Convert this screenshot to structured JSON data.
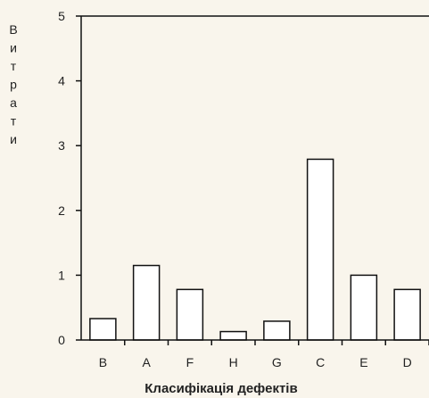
{
  "chart_data": {
    "type": "bar",
    "categories": [
      "B",
      "A",
      "F",
      "H",
      "G",
      "C",
      "E",
      "D"
    ],
    "values": [
      0.33,
      1.15,
      0.78,
      0.13,
      0.29,
      2.79,
      1.0,
      0.78
    ],
    "xlabel": "Класифікація дефектів",
    "ylabel": "Витрати",
    "ylim": [
      0,
      5
    ],
    "yticks": [
      "0",
      "1",
      "2",
      "3",
      "4",
      "5"
    ],
    "grid": false,
    "bar_fill": "#ffffff",
    "bar_stroke": "#111111"
  }
}
